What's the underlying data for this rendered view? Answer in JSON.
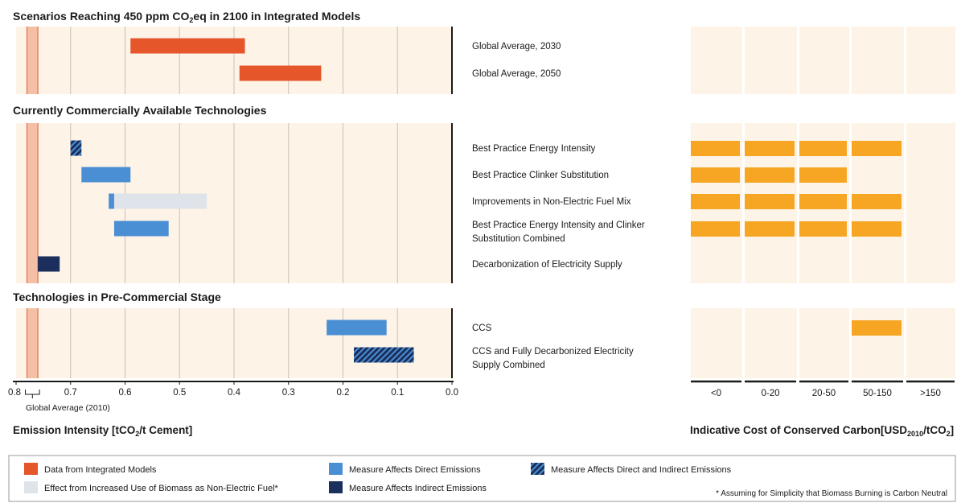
{
  "chart_data": {
    "type": "bar",
    "x_axis": {
      "label_parts": [
        "Emission Intensity [tCO",
        "2",
        "/t Cement]"
      ],
      "ticks": [
        0.8,
        0.7,
        0.6,
        0.5,
        0.4,
        0.3,
        0.2,
        0.1,
        0.0
      ],
      "tick_labels": [
        "0.8",
        "0.7",
        "0.6",
        "0.5",
        "0.4",
        "0.3",
        "0.2",
        "0.1",
        "0.0"
      ],
      "xlim": [
        0.8,
        0.0
      ],
      "reference_label": "Global Average (2010)",
      "reference_value": [
        0.78,
        0.76
      ],
      "grid": true
    },
    "cost_axis": {
      "label_parts": [
        "Indicative Cost of Conserved Carbon[USD",
        "2010",
        "/tCO",
        "2",
        "]"
      ],
      "categories": [
        "<0",
        "0-20",
        "20-50",
        "50-150",
        ">150"
      ]
    },
    "sections": [
      {
        "title_parts": [
          "Scenarios Reaching 450 ppm CO",
          "2",
          "eq in 2100 in Integrated Models"
        ],
        "rows": [
          {
            "label": [
              "Global Average, 2030"
            ],
            "bars": [
              {
                "from": 0.59,
                "to": 0.38,
                "kind": "model"
              }
            ],
            "cost": []
          },
          {
            "label": [
              "Global Average, 2050"
            ],
            "bars": [
              {
                "from": 0.39,
                "to": 0.24,
                "kind": "model"
              }
            ],
            "cost": []
          }
        ]
      },
      {
        "title_parts": [
          "Currently Commercially Available Technologies"
        ],
        "rows": [
          {
            "label": [
              "Best Practice Energy Intensity"
            ],
            "bars": [
              {
                "from": 0.7,
                "to": 0.68,
                "kind": "both"
              }
            ],
            "cost": [
              1,
              1,
              1,
              1,
              0
            ]
          },
          {
            "label": [
              "Best Practice Clinker Substitution"
            ],
            "bars": [
              {
                "from": 0.68,
                "to": 0.59,
                "kind": "direct"
              }
            ],
            "cost": [
              1,
              1,
              1,
              0,
              0
            ]
          },
          {
            "label": [
              "Improvements in Non-Electric Fuel Mix"
            ],
            "bars": [
              {
                "from": 0.62,
                "to": 0.45,
                "kind": "biomass"
              },
              {
                "from": 0.63,
                "to": 0.62,
                "kind": "direct"
              }
            ],
            "cost": [
              1,
              1,
              1,
              1,
              0
            ]
          },
          {
            "label": [
              "Best Practice Energy Intensity and Clinker",
              "Substitution Combined"
            ],
            "bars": [
              {
                "from": 0.62,
                "to": 0.52,
                "kind": "direct"
              }
            ],
            "cost": [
              1,
              1,
              1,
              1,
              0
            ]
          },
          {
            "label": [
              "Decarbonization of Electricity Supply"
            ],
            "bars": [
              {
                "from": 0.76,
                "to": 0.72,
                "kind": "indirect"
              }
            ],
            "cost": [
              0,
              0,
              0,
              0,
              0
            ]
          }
        ]
      },
      {
        "title_parts": [
          "Technologies in Pre-Commercial Stage"
        ],
        "rows": [
          {
            "label": [
              "CCS"
            ],
            "bars": [
              {
                "from": 0.23,
                "to": 0.12,
                "kind": "direct"
              }
            ],
            "cost": [
              0,
              0,
              0,
              1,
              0
            ]
          },
          {
            "label": [
              "CCS and Fully Decarbonized Electricity",
              "Supply Combined"
            ],
            "bars": [
              {
                "from": 0.18,
                "to": 0.07,
                "kind": "both"
              }
            ],
            "cost": [
              0,
              0,
              0,
              0,
              0
            ]
          }
        ]
      }
    ],
    "legend": [
      {
        "kind": "model",
        "label": "Data from Integrated Models"
      },
      {
        "kind": "biomass",
        "label": "Effect from Increased Use of Biomass as Non-Electric Fuel*"
      },
      {
        "kind": "direct",
        "label": "Measure Affects Direct Emissions"
      },
      {
        "kind": "indirect",
        "label": "Measure Affects Indirect Emissions"
      },
      {
        "kind": "both",
        "label": "Measure Affects Direct and Indirect Emissions"
      }
    ],
    "footnote": "* Assuming for Simplicity that Biomass Burning is Carbon Neutral",
    "legend_placement": "bottom"
  },
  "colors": {
    "model": "#e5562a",
    "direct": "#4a8fd4",
    "indirect": "#1b2f5c",
    "biomass": "#dfe3ea",
    "hatch_bg": "#1b2f5c",
    "hatch_fg": "#4a8fd4",
    "cost": "#f6a623",
    "panel": "#fdf3e7",
    "grid": "#c8c2ba",
    "reference": "#f3c0a6",
    "reference_line": "#e5562a"
  }
}
